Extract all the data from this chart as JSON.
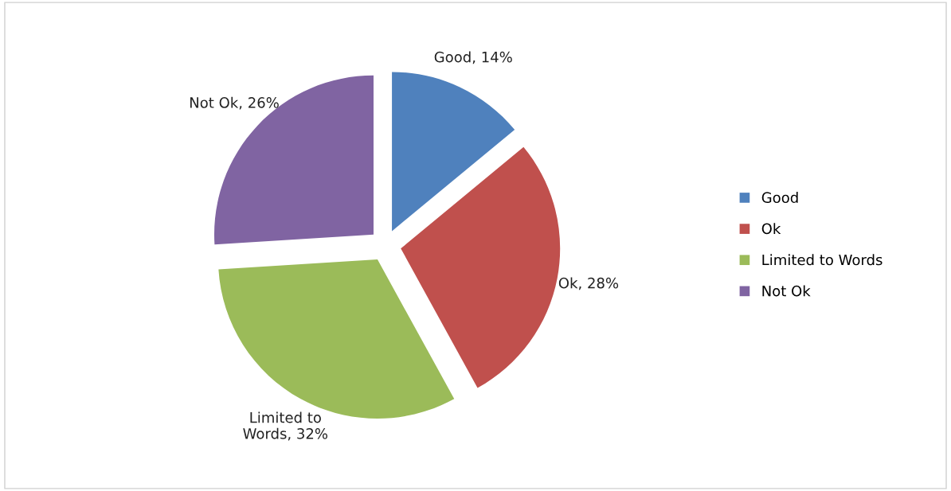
{
  "chart_data": {
    "type": "pie",
    "categories": [
      "Good",
      "Ok",
      "Limited to Words",
      "Not Ok"
    ],
    "values": [
      14,
      28,
      32,
      26
    ],
    "colors": [
      "#4f81bd",
      "#c0504d",
      "#9bbb59",
      "#8064a2"
    ],
    "value_labels": [
      "Good, 14%",
      "Ok, 28%",
      "Limited to\nWords, 32%",
      "Not Ok, 26%"
    ],
    "legend": "right"
  }
}
